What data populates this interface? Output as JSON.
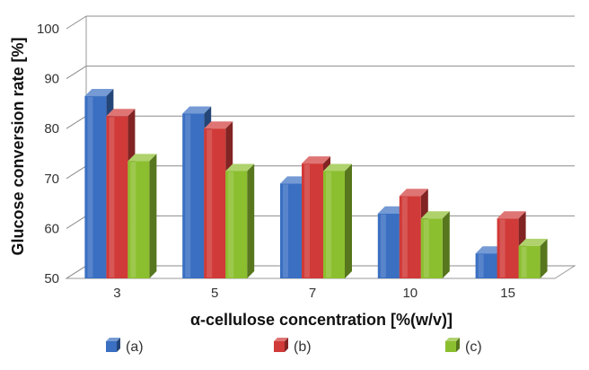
{
  "chart_data": {
    "type": "bar",
    "title": "",
    "xlabel": "α-cellulose concentration [%(w/v)]",
    "ylabel": "Glucose conversion rate [%]",
    "categories": [
      "3",
      "5",
      "7",
      "10",
      "15"
    ],
    "ylim": [
      50,
      100
    ],
    "yticks": [
      "50",
      "60",
      "70",
      "80",
      "90",
      "100"
    ],
    "grid": true,
    "legend_position": "bottom",
    "series": [
      {
        "name": "(a)",
        "color": "#3a6fc2",
        "values": [
          86.5,
          83,
          69,
          63,
          55
        ]
      },
      {
        "name": "(b)",
        "color": "#d03a38",
        "values": [
          82.5,
          80,
          73,
          66.5,
          62
        ]
      },
      {
        "name": "(c)",
        "color": "#8cbf2f",
        "values": [
          73.5,
          71.5,
          71.5,
          62,
          56.5
        ]
      }
    ]
  }
}
